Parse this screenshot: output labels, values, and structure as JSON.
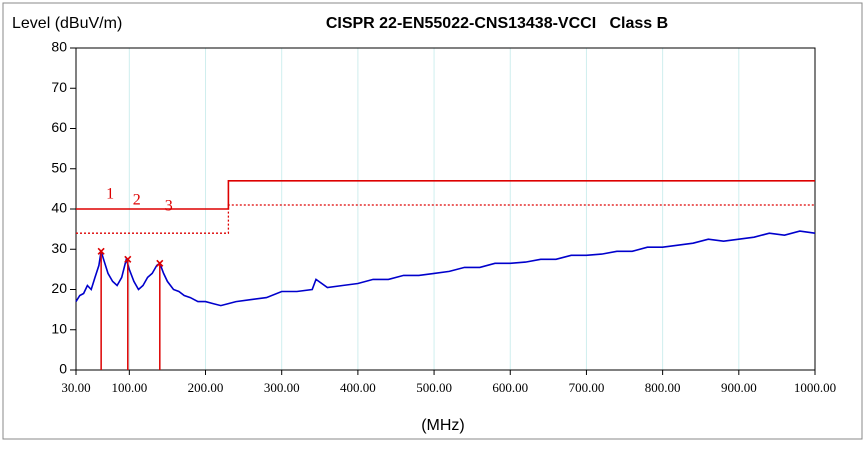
{
  "chart_data": {
    "type": "line",
    "title": "CISPR 22-EN55022-CNS13438-VCCI   Class B",
    "ylabel": "Level (dBuV/m)",
    "xlabel": "(MHz)",
    "xlim": [
      30,
      1000
    ],
    "ylim": [
      0,
      80
    ],
    "xticks": [
      {
        "value": 30,
        "label": "30.00"
      },
      {
        "value": 100,
        "label": "100.00"
      },
      {
        "value": 200,
        "label": "200.00"
      },
      {
        "value": 300,
        "label": "300.00"
      },
      {
        "value": 400,
        "label": "400.00"
      },
      {
        "value": 500,
        "label": "500.00"
      },
      {
        "value": 600,
        "label": "600.00"
      },
      {
        "value": 700,
        "label": "700.00"
      },
      {
        "value": 800,
        "label": "800.00"
      },
      {
        "value": 900,
        "label": "900.00"
      },
      {
        "value": 1000,
        "label": "1000.00"
      }
    ],
    "yticks": [
      0,
      10,
      20,
      30,
      40,
      50,
      60,
      70,
      80
    ],
    "grid": true,
    "grid_color": "#cfeeee",
    "series": [
      {
        "color": "#dd0000",
        "style": "solid",
        "x": [
          30,
          230,
          230,
          1000
        ],
        "values": [
          40,
          40,
          47,
          47
        ]
      },
      {
        "color": "#dd0000",
        "style": "dotted",
        "x": [
          30,
          230,
          230,
          1000
        ],
        "values": [
          34,
          34,
          41,
          41
        ]
      },
      {
        "color": "#0000cc",
        "style": "solid",
        "x": [
          30,
          35,
          40,
          45,
          50,
          55,
          60,
          63,
          67,
          72,
          78,
          84,
          90,
          96,
          100,
          106,
          112,
          118,
          124,
          130,
          136,
          140,
          145,
          150,
          158,
          165,
          172,
          180,
          190,
          200,
          210,
          220,
          230,
          240,
          260,
          280,
          300,
          320,
          340,
          345,
          360,
          380,
          400,
          420,
          440,
          460,
          480,
          500,
          520,
          540,
          560,
          580,
          600,
          620,
          640,
          660,
          680,
          700,
          720,
          740,
          760,
          780,
          800,
          820,
          840,
          860,
          880,
          900,
          920,
          940,
          960,
          980,
          1000
        ],
        "values": [
          17,
          18.5,
          19,
          21,
          20,
          23,
          26,
          29.5,
          27,
          24,
          22,
          21,
          23,
          27.5,
          25,
          22,
          20,
          21,
          23,
          24,
          26,
          26.5,
          24,
          22,
          20,
          19.5,
          18.5,
          18,
          17,
          17,
          16.5,
          16,
          16.5,
          17,
          17.5,
          18,
          19.5,
          19.5,
          20,
          22.5,
          20.5,
          21,
          21.5,
          22.5,
          22.5,
          23.5,
          23.5,
          24,
          24.5,
          25.5,
          25.5,
          26.5,
          26.5,
          26.8,
          27.5,
          27.5,
          28.5,
          28.5,
          28.8,
          29.5,
          29.5,
          30.5,
          30.5,
          31,
          31.5,
          32.5,
          32,
          32.5,
          33,
          34,
          33.5,
          34.5,
          34
        ]
      }
    ],
    "markers": [
      {
        "label": "1",
        "x": 63,
        "y": 29.5
      },
      {
        "label": "2",
        "x": 98,
        "y": 27.5
      },
      {
        "label": "3",
        "x": 140,
        "y": 26.5
      }
    ]
  }
}
